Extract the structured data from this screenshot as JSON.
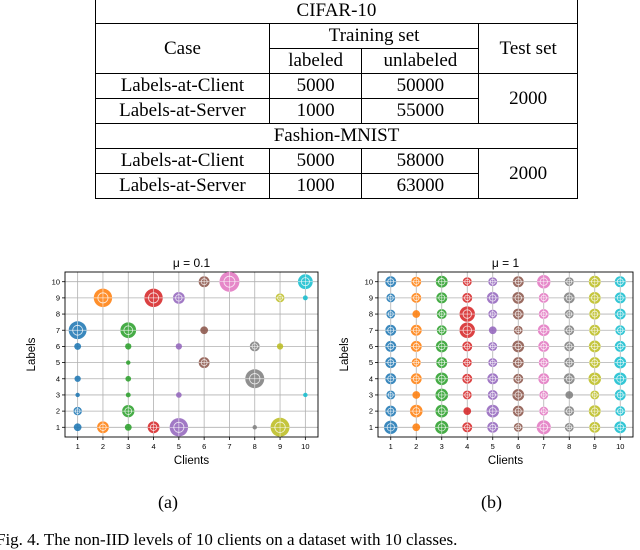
{
  "table": {
    "case_header": "Case",
    "training_header": "Training set",
    "labeled_header": "labeled",
    "unlabeled_header": "unlabeled",
    "test_header": "Test set",
    "sections": [
      {
        "name": "CIFAR-10",
        "rows": [
          {
            "case": "Labels-at-Client",
            "labeled": "5000",
            "unlabeled": "50000"
          },
          {
            "case": "Labels-at-Server",
            "labeled": "1000",
            "unlabeled": "55000"
          }
        ],
        "test": "2000"
      },
      {
        "name": "Fashion-MNIST",
        "rows": [
          {
            "case": "Labels-at-Client",
            "labeled": "5000",
            "unlabeled": "58000"
          },
          {
            "case": "Labels-at-Server",
            "labeled": "1000",
            "unlabeled": "63000"
          }
        ],
        "test": "2000"
      }
    ]
  },
  "chart_data": [
    {
      "type": "scatter",
      "title": "μ = 0.1",
      "xlabel": "Clients",
      "ylabel": "Labels",
      "x_ticks": [
        "1",
        "2",
        "3",
        "4",
        "5",
        "6",
        "7",
        "8",
        "9",
        "10"
      ],
      "y_ticks": [
        "1",
        "2",
        "3",
        "4",
        "5",
        "6",
        "7",
        "8",
        "9",
        "10"
      ],
      "xlim": [
        0.5,
        10.5
      ],
      "ylim": [
        0.4,
        10.6
      ],
      "grid": true,
      "colors": [
        "#1f77b4",
        "#ff7f0e",
        "#2ca02c",
        "#d62728",
        "#9467bd",
        "#8c564b",
        "#e377c2",
        "#7f7f7f",
        "#bcbd22",
        "#17becf"
      ],
      "points": [
        {
          "x": 1,
          "y": 7,
          "size": 0.8
        },
        {
          "x": 1,
          "y": 6,
          "size": 0.12
        },
        {
          "x": 1,
          "y": 4,
          "size": 0.1
        },
        {
          "x": 1,
          "y": 2,
          "size": 0.18
        },
        {
          "x": 1,
          "y": 1,
          "size": 0.15
        },
        {
          "x": 1,
          "y": 3,
          "size": 0.05
        },
        {
          "x": 2,
          "y": 9,
          "size": 0.85
        },
        {
          "x": 2,
          "y": 1,
          "size": 0.35
        },
        {
          "x": 3,
          "y": 7,
          "size": 0.62
        },
        {
          "x": 3,
          "y": 6,
          "size": 0.1
        },
        {
          "x": 3,
          "y": 4,
          "size": 0.08
        },
        {
          "x": 3,
          "y": 2,
          "size": 0.38
        },
        {
          "x": 3,
          "y": 1,
          "size": 0.12
        },
        {
          "x": 3,
          "y": 3,
          "size": 0.06
        },
        {
          "x": 3,
          "y": 5,
          "size": 0.05
        },
        {
          "x": 4,
          "y": 9,
          "size": 0.85
        },
        {
          "x": 4,
          "y": 1,
          "size": 0.35
        },
        {
          "x": 5,
          "y": 9,
          "size": 0.35
        },
        {
          "x": 5,
          "y": 6,
          "size": 0.1
        },
        {
          "x": 5,
          "y": 3,
          "size": 0.08
        },
        {
          "x": 5,
          "y": 1,
          "size": 0.85
        },
        {
          "x": 6,
          "y": 10,
          "size": 0.3
        },
        {
          "x": 6,
          "y": 7,
          "size": 0.15
        },
        {
          "x": 6,
          "y": 5,
          "size": 0.3
        },
        {
          "x": 7,
          "y": 10,
          "size": 1.0
        },
        {
          "x": 8,
          "y": 6,
          "size": 0.25
        },
        {
          "x": 8,
          "y": 4,
          "size": 0.9
        },
        {
          "x": 8,
          "y": 1,
          "size": 0.05
        },
        {
          "x": 9,
          "y": 9,
          "size": 0.2
        },
        {
          "x": 9,
          "y": 6,
          "size": 0.1
        },
        {
          "x": 9,
          "y": 1,
          "size": 0.9
        },
        {
          "x": 10,
          "y": 10,
          "size": 0.55
        },
        {
          "x": 10,
          "y": 9,
          "size": 0.06
        },
        {
          "x": 10,
          "y": 3,
          "size": 0.05
        }
      ]
    },
    {
      "type": "scatter",
      "title": "μ = 1",
      "xlabel": "Clients",
      "ylabel": "Labels",
      "x_ticks": [
        "1",
        "2",
        "3",
        "4",
        "5",
        "6",
        "7",
        "8",
        "9",
        "10"
      ],
      "y_ticks": [
        "1",
        "2",
        "3",
        "4",
        "5",
        "6",
        "7",
        "8",
        "9",
        "10"
      ],
      "xlim": [
        0.5,
        10.5
      ],
      "ylim": [
        0.4,
        10.6
      ],
      "grid": true,
      "colors": [
        "#1f77b4",
        "#ff7f0e",
        "#2ca02c",
        "#d62728",
        "#9467bd",
        "#8c564b",
        "#e377c2",
        "#7f7f7f",
        "#bcbd22",
        "#17becf"
      ],
      "size_grid": [
        [
          0.45,
          0.15,
          0.45,
          0.25,
          0.3,
          0.2,
          0.5,
          0.2,
          0.3,
          0.35
        ],
        [
          0.3,
          0.4,
          0.4,
          0.15,
          0.4,
          0.3,
          0.2,
          0.25,
          0.35,
          0.25
        ],
        [
          0.2,
          0.15,
          0.4,
          0.2,
          0.25,
          0.35,
          0.2,
          0.15,
          0.2,
          0.3
        ],
        [
          0.3,
          0.3,
          0.4,
          0.25,
          0.3,
          0.25,
          0.3,
          0.3,
          0.4,
          0.4
        ],
        [
          0.3,
          0.2,
          0.3,
          0.2,
          0.2,
          0.3,
          0.25,
          0.25,
          0.3,
          0.35
        ],
        [
          0.3,
          0.3,
          0.35,
          0.25,
          0.2,
          0.35,
          0.3,
          0.25,
          0.35,
          0.3
        ],
        [
          0.3,
          0.3,
          0.25,
          0.6,
          0.15,
          0.2,
          0.35,
          0.25,
          0.3,
          0.25
        ],
        [
          0.2,
          0.15,
          0.25,
          0.6,
          0.2,
          0.3,
          0.25,
          0.2,
          0.3,
          0.3
        ],
        [
          0.2,
          0.25,
          0.3,
          0.25,
          0.35,
          0.35,
          0.25,
          0.3,
          0.35,
          0.3
        ],
        [
          0.3,
          0.25,
          0.35,
          0.2,
          0.2,
          0.3,
          0.45,
          0.2,
          0.35,
          0.3
        ]
      ]
    }
  ],
  "subcaptions": [
    "(a)",
    "(b)"
  ],
  "caption": "Fig. 4.   The non-IID levels of 10 clients on a dataset with 10 classes."
}
